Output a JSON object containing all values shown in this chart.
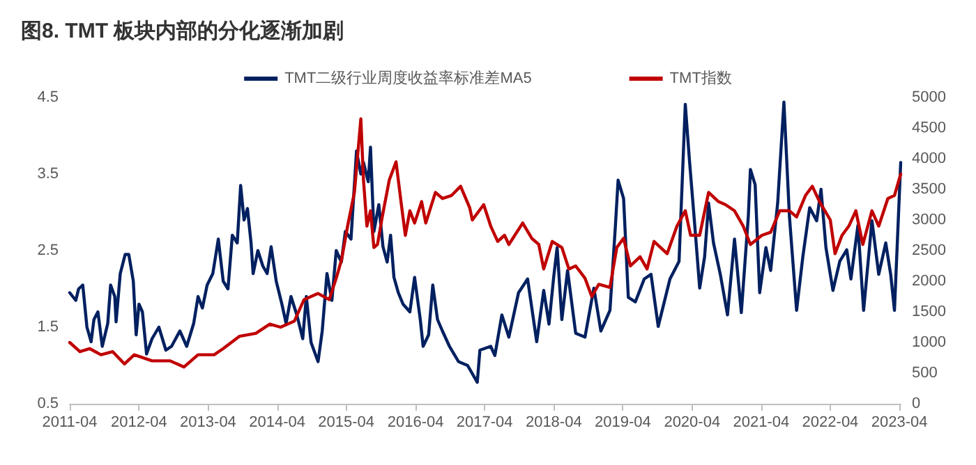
{
  "chart_data": {
    "type": "line",
    "title": "图8. TMT 板块内部的分化逐渐加剧",
    "xlim": [
      "2011-04-01",
      "2023-04-08"
    ],
    "xticks": [
      "2011-04",
      "2012-04",
      "2013-04",
      "2014-04",
      "2015-04",
      "2016-04",
      "2017-04",
      "2018-04",
      "2019-04",
      "2020-04",
      "2021-04",
      "2022-04",
      "2023-04"
    ],
    "ylim": [
      0.5,
      4.5
    ],
    "yticks": [
      0.5,
      1.5,
      2.5,
      3.5,
      4.5
    ],
    "y2lim": [
      0,
      5000
    ],
    "y2ticks": [
      0,
      500,
      1000,
      1500,
      2000,
      2500,
      3000,
      3500,
      4000,
      4500,
      5000
    ],
    "legend": "top",
    "marker": "none",
    "line_style": "solid",
    "series": [
      {
        "name": "TMT二级行业周度收益率标准差MA5",
        "color": "#002060",
        "x": [
          "2011-04-01",
          "2011-05-03",
          "2011-05-18",
          "2011-06-09",
          "2011-07-01",
          "2011-07-23",
          "2011-08-07",
          "2011-08-28",
          "2011-09-20",
          "2011-10-19",
          "2011-11-03",
          "2011-11-25",
          "2011-12-02",
          "2011-12-24",
          "2012-01-19",
          "2012-02-07",
          "2012-03-02",
          "2012-03-17",
          "2012-04-01",
          "2012-04-19",
          "2012-05-11",
          "2012-06-09",
          "2012-07-15",
          "2012-08-21",
          "2012-09-20",
          "2012-11-03",
          "2012-12-09",
          "2013-01-15",
          "2013-02-07",
          "2013-03-02",
          "2013-03-27",
          "2013-04-26",
          "2013-05-25",
          "2013-06-20",
          "2013-07-15",
          "2013-08-07",
          "2013-09-02",
          "2013-09-20",
          "2013-10-08",
          "2013-10-26",
          "2013-11-14",
          "2013-11-25",
          "2013-12-20",
          "2014-01-15",
          "2014-02-07",
          "2014-02-28",
          "2014-03-27",
          "2014-04-26",
          "2014-05-18",
          "2014-06-13",
          "2014-07-15",
          "2014-08-14",
          "2014-09-02",
          "2014-09-27",
          "2014-11-03",
          "2014-11-25",
          "2014-12-20",
          "2015-01-15",
          "2015-02-07",
          "2015-03-06",
          "2015-03-27",
          "2015-04-26",
          "2015-05-25",
          "2015-06-17",
          "2015-07-01",
          "2015-07-26",
          "2015-08-07",
          "2015-08-25",
          "2015-09-20",
          "2015-10-12",
          "2015-11-03",
          "2015-11-21",
          "2015-12-09",
          "2016-01-01",
          "2016-01-26",
          "2016-03-02",
          "2016-03-27",
          "2016-04-26",
          "2016-05-11",
          "2016-06-09",
          "2016-07-01",
          "2016-07-26",
          "2016-08-21",
          "2016-09-27",
          "2016-11-14",
          "2017-01-01",
          "2017-02-21",
          "2017-03-07",
          "2017-05-03",
          "2017-05-25",
          "2017-07-01",
          "2017-08-07",
          "2017-09-27",
          "2017-11-14",
          "2018-01-01",
          "2018-02-07",
          "2018-03-07",
          "2018-04-01",
          "2018-04-19",
          "2018-05-14",
          "2018-06-13",
          "2018-07-26",
          "2018-09-13",
          "2018-10-30",
          "2018-12-06",
          "2019-01-23",
          "2019-02-21",
          "2019-03-07",
          "2019-04-05",
          "2019-04-30",
          "2019-06-06",
          "2019-07-23",
          "2019-08-28",
          "2019-10-05",
          "2019-12-06",
          "2020-01-23",
          "2020-02-25",
          "2020-03-17",
          "2020-04-15",
          "2020-05-11",
          "2020-06-06",
          "2020-06-27",
          "2020-07-23",
          "2020-08-28",
          "2020-10-05",
          "2020-11-11",
          "2020-12-17",
          "2021-01-23",
          "2021-02-03",
          "2021-02-28",
          "2021-03-24",
          "2021-04-26",
          "2021-05-21",
          "2021-06-27",
          "2021-07-30",
          "2021-08-28",
          "2021-10-05",
          "2021-11-07",
          "2021-12-13",
          "2022-01-19",
          "2022-02-11",
          "2022-03-09",
          "2022-04-15",
          "2022-05-21",
          "2022-06-27",
          "2022-07-19",
          "2022-08-25",
          "2022-09-24",
          "2022-11-07",
          "2022-12-13",
          "2023-01-19",
          "2023-02-14",
          "2023-03-06",
          "2023-04-08"
        ],
        "values": [
          1.95,
          1.85,
          2.0,
          2.05,
          1.5,
          1.31,
          1.6,
          1.7,
          1.25,
          1.55,
          2.05,
          1.9,
          1.57,
          2.2,
          2.45,
          2.45,
          2.1,
          1.4,
          1.8,
          1.7,
          1.15,
          1.35,
          1.5,
          1.2,
          1.25,
          1.45,
          1.25,
          1.55,
          1.9,
          1.75,
          2.05,
          2.2,
          2.65,
          2.1,
          2.0,
          2.7,
          2.6,
          3.35,
          2.9,
          3.05,
          2.6,
          2.2,
          2.5,
          2.3,
          2.2,
          2.55,
          2.1,
          1.8,
          1.55,
          1.9,
          1.65,
          1.35,
          1.9,
          1.3,
          1.05,
          1.45,
          2.2,
          1.85,
          2.5,
          2.35,
          2.75,
          2.65,
          3.8,
          3.5,
          3.65,
          3.4,
          3.85,
          2.75,
          3.1,
          2.55,
          2.35,
          2.7,
          2.15,
          1.95,
          1.8,
          1.7,
          2.15,
          1.6,
          1.25,
          1.4,
          2.05,
          1.6,
          1.45,
          1.25,
          1.05,
          1.0,
          0.78,
          1.2,
          1.25,
          1.13,
          1.66,
          1.37,
          1.95,
          2.13,
          1.31,
          1.98,
          1.54,
          2.16,
          2.54,
          1.6,
          2.24,
          1.42,
          1.37,
          2.01,
          1.45,
          1.72,
          2.83,
          3.42,
          3.18,
          1.89,
          1.83,
          2.13,
          2.19,
          1.51,
          2.13,
          2.36,
          4.41,
          3.71,
          2.83,
          2.01,
          2.42,
          3.12,
          2.6,
          2.19,
          1.66,
          2.65,
          1.69,
          2.95,
          3.56,
          3.36,
          1.95,
          2.54,
          2.24,
          3.12,
          4.44,
          2.95,
          1.72,
          2.42,
          3.06,
          2.89,
          3.3,
          2.54,
          1.98,
          2.36,
          2.51,
          2.13,
          2.83,
          1.72,
          2.89,
          2.19,
          2.6,
          2.19,
          1.72,
          3.65
        ]
      },
      {
        "name": "TMT指数",
        "color": "#c00000",
        "axis": "y2",
        "x": [
          "2011-04-01",
          "2011-05-25",
          "2011-07-15",
          "2011-09-13",
          "2011-11-14",
          "2012-01-15",
          "2012-03-07",
          "2012-06-09",
          "2012-09-13",
          "2012-11-25",
          "2013-02-07",
          "2013-05-03",
          "2013-06-20",
          "2013-09-13",
          "2013-12-09",
          "2014-02-21",
          "2014-04-19",
          "2014-07-01",
          "2014-08-21",
          "2014-11-03",
          "2015-01-01",
          "2015-02-07",
          "2015-03-07",
          "2015-04-08",
          "2015-05-14",
          "2015-06-17",
          "2015-07-01",
          "2015-07-19",
          "2015-08-07",
          "2015-08-25",
          "2015-09-13",
          "2015-10-08",
          "2015-11-14",
          "2015-12-20",
          "2016-01-15",
          "2016-02-07",
          "2016-03-02",
          "2016-03-27",
          "2016-05-03",
          "2016-05-25",
          "2016-07-15",
          "2016-08-21",
          "2016-10-08",
          "2016-11-25",
          "2017-01-12",
          "2017-01-26",
          "2017-03-27",
          "2017-05-03",
          "2017-06-09",
          "2017-07-15",
          "2017-08-07",
          "2017-10-19",
          "2017-12-06",
          "2018-01-12",
          "2018-02-07",
          "2018-03-24",
          "2018-05-14",
          "2018-06-20",
          "2018-07-26",
          "2018-09-13",
          "2018-10-19",
          "2018-11-25",
          "2019-01-23",
          "2019-02-28",
          "2019-04-05",
          "2019-05-11",
          "2019-07-01",
          "2019-08-07",
          "2019-09-13",
          "2019-11-21",
          "2020-01-12",
          "2020-02-25",
          "2020-03-24",
          "2020-05-11",
          "2020-06-27",
          "2020-08-18",
          "2020-09-24",
          "2020-11-11",
          "2020-12-27",
          "2021-02-03",
          "2021-04-05",
          "2021-05-21",
          "2021-07-08",
          "2021-08-28",
          "2021-10-05",
          "2021-11-21",
          "2021-12-27",
          "2022-02-03",
          "2022-04-01",
          "2022-04-26",
          "2022-06-02",
          "2022-07-08",
          "2022-08-14",
          "2022-09-20",
          "2022-11-07",
          "2022-12-13",
          "2023-01-30",
          "2023-03-06",
          "2023-04-08"
        ],
        "values": [
          1000,
          850,
          900,
          800,
          850,
          650,
          800,
          700,
          700,
          600,
          800,
          800,
          900,
          1100,
          1150,
          1300,
          1250,
          1350,
          1700,
          1800,
          1700,
          2050,
          2350,
          2900,
          3450,
          4650,
          3650,
          2900,
          3150,
          2550,
          2600,
          3050,
          3650,
          3950,
          3300,
          2750,
          3150,
          2950,
          3300,
          2950,
          3450,
          3350,
          3400,
          3550,
          3200,
          3000,
          3250,
          2900,
          2650,
          2750,
          2600,
          2950,
          2700,
          2600,
          2200,
          2650,
          2550,
          2200,
          2250,
          2050,
          1750,
          1950,
          1900,
          2550,
          2700,
          2250,
          2400,
          2200,
          2650,
          2450,
          2900,
          3150,
          2750,
          2750,
          3450,
          3300,
          3250,
          3150,
          2900,
          2600,
          2750,
          2800,
          3150,
          3150,
          3050,
          3400,
          3550,
          3300,
          3000,
          2450,
          2750,
          2900,
          3150,
          2600,
          3150,
          2900,
          3350,
          3400,
          3750
        ]
      }
    ]
  }
}
